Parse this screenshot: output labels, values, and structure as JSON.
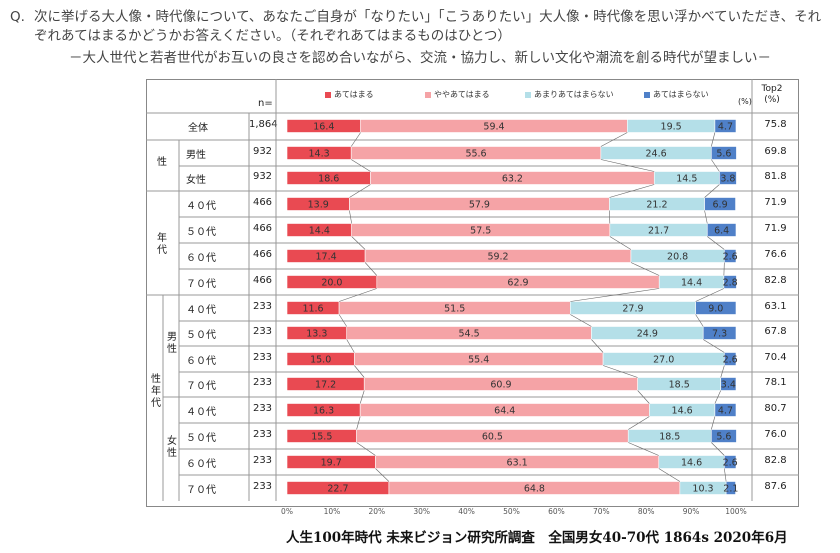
{
  "question": {
    "prefix": "Q.",
    "text": "次に挙げる大人像・時代像について、あなたご自身が「なりたい」「こうありたい」大人像・時代像を思い浮かべていただき、それぞれあてはまるかどうかお答えください。（それぞれあてはまるものはひとつ）",
    "subtitle": "－大人世代と若者世代がお互いの良さを認め合いながら、交流・協力し、新しい文化や潮流を創る時代が望ましい－"
  },
  "header": {
    "n_label": "n=",
    "pct_label": "(%)",
    "top2_label_line1": "Top2",
    "top2_label_line2": "(%)"
  },
  "colors": {
    "c1": "#e94a52",
    "c2": "#f5a3a6",
    "c3": "#b4dfe8",
    "c4": "#4f80c8"
  },
  "groups": {
    "sex": "性",
    "age": "年代",
    "sexage": "性年代",
    "male": "男性",
    "female": "女性"
  },
  "chart_data": {
    "type": "bar",
    "stacked": true,
    "orientation": "horizontal",
    "title": "大人世代と若者世代がお互いの良さを認め合いながら、交流・協力し、新しい文化や潮流を創る時代が望ましい",
    "legend": [
      "あてはまる",
      "ややあてはまる",
      "あまりあてはまらない",
      "あてはまらない"
    ],
    "legend_position": "top",
    "xlim": [
      0,
      100
    ],
    "xunit": "%",
    "xticks": [
      "0%",
      "10%",
      "20%",
      "30%",
      "40%",
      "50%",
      "60%",
      "70%",
      "80%",
      "90%",
      "100%"
    ],
    "rows": [
      {
        "label": "全体",
        "n": "1,864",
        "values": [
          16.4,
          59.4,
          19.5,
          4.7
        ],
        "labels": [
          "16.4",
          "59.4",
          "19.5",
          "4.7"
        ],
        "top2": "75.8"
      },
      {
        "label": "男性",
        "n": "932",
        "values": [
          14.3,
          55.6,
          24.6,
          5.6
        ],
        "labels": [
          "14.3",
          "55.6",
          "24.6",
          "5.6"
        ],
        "top2": "69.8"
      },
      {
        "label": "女性",
        "n": "932",
        "values": [
          18.6,
          63.2,
          14.5,
          3.8
        ],
        "labels": [
          "18.6",
          "63.2",
          "14.5",
          "3.8"
        ],
        "top2": "81.8"
      },
      {
        "label": "４０代",
        "n": "466",
        "values": [
          13.9,
          57.9,
          21.2,
          6.9
        ],
        "labels": [
          "13.9",
          "57.9",
          "21.2",
          "6.9"
        ],
        "top2": "71.9"
      },
      {
        "label": "５０代",
        "n": "466",
        "values": [
          14.4,
          57.5,
          21.7,
          6.4
        ],
        "labels": [
          "14.4",
          "57.5",
          "21.7",
          "6.4"
        ],
        "top2": "71.9"
      },
      {
        "label": "６０代",
        "n": "466",
        "values": [
          17.4,
          59.2,
          20.8,
          2.6
        ],
        "labels": [
          "17.4",
          "59.2",
          "20.8",
          "2.6"
        ],
        "top2": "76.6"
      },
      {
        "label": "７０代",
        "n": "466",
        "values": [
          20.0,
          62.9,
          14.4,
          2.8
        ],
        "labels": [
          "20.0",
          "62.9",
          "14.4",
          "2.8"
        ],
        "top2": "82.8"
      },
      {
        "label": "４０代",
        "n": "233",
        "values": [
          11.6,
          51.5,
          27.9,
          9.0
        ],
        "labels": [
          "11.6",
          "51.5",
          "27.9",
          "9.0"
        ],
        "top2": "63.1"
      },
      {
        "label": "５０代",
        "n": "233",
        "values": [
          13.3,
          54.5,
          24.9,
          7.3
        ],
        "labels": [
          "13.3",
          "54.5",
          "24.9",
          "7.3"
        ],
        "top2": "67.8"
      },
      {
        "label": "６０代",
        "n": "233",
        "values": [
          15.0,
          55.4,
          27.0,
          2.6
        ],
        "labels": [
          "15.0",
          "55.4",
          "27.0",
          "2.6"
        ],
        "top2": "70.4"
      },
      {
        "label": "７０代",
        "n": "233",
        "values": [
          17.2,
          60.9,
          18.5,
          3.4
        ],
        "labels": [
          "17.2",
          "60.9",
          "18.5",
          "3.4"
        ],
        "top2": "78.1"
      },
      {
        "label": "４０代",
        "n": "233",
        "values": [
          16.3,
          64.4,
          14.6,
          4.7
        ],
        "labels": [
          "16.3",
          "64.4",
          "14.6",
          "4.7"
        ],
        "top2": "80.7"
      },
      {
        "label": "５０代",
        "n": "233",
        "values": [
          15.5,
          60.5,
          18.5,
          5.6
        ],
        "labels": [
          "15.5",
          "60.5",
          "18.5",
          "5.6"
        ],
        "top2": "76.0"
      },
      {
        "label": "６０代",
        "n": "233",
        "values": [
          19.7,
          63.1,
          14.6,
          2.6
        ],
        "labels": [
          "19.7",
          "63.1",
          "14.6",
          "2.6"
        ],
        "top2": "82.8"
      },
      {
        "label": "７０代",
        "n": "233",
        "values": [
          22.7,
          64.8,
          10.3,
          2.1
        ],
        "labels": [
          "22.7",
          "64.8",
          "10.3",
          "2.1"
        ],
        "top2": "87.6"
      }
    ]
  },
  "footer": "人生100年時代 未来ビジョン研究所調査　全国男女40-70代 1864s 2020年6月"
}
